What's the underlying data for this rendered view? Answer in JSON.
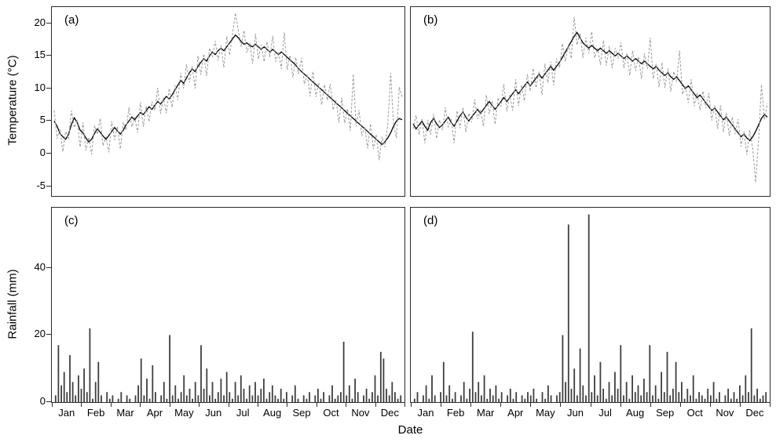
{
  "figure": {
    "xlabel": "Date",
    "ylabel_top": "Temperature (°C)",
    "ylabel_bottom": "Rainfall (mm)",
    "months": [
      "Jan",
      "Feb",
      "Mar",
      "Apr",
      "May",
      "Jun",
      "Jul",
      "Aug",
      "Sep",
      "Oct",
      "Nov",
      "Dec"
    ],
    "temp_ticks": [
      20,
      15,
      10,
      5,
      0,
      -5
    ],
    "rain_ticks": [
      0,
      20,
      40
    ],
    "line_color_solid": "#000000",
    "line_color_dashed": "#9a9a9a",
    "bar_color": "#3f3f3f"
  },
  "chart_data": [
    {
      "type": "line",
      "panel_label": "(a)",
      "ylabel": "Temperature (°C)",
      "xlabel": "Date",
      "x_range": "Jan to Dec, points every 3 days",
      "ylim": [
        -6.5,
        22.5
      ],
      "series": [
        {
          "name": "solid-black-line",
          "color": "#000000",
          "line_style": "solid",
          "values": [
            5.0,
            4.2,
            3.1,
            2.6,
            2.2,
            3.0,
            4.5,
            5.5,
            4.8,
            3.6,
            3.2,
            2.4,
            1.8,
            2.2,
            3.1,
            3.8,
            3.3,
            2.7,
            2.2,
            2.8,
            3.4,
            4.0,
            3.5,
            3.0,
            3.6,
            4.4,
            5.0,
            5.6,
            5.2,
            5.8,
            6.3,
            6.0,
            6.6,
            7.2,
            6.8,
            7.4,
            8.0,
            7.6,
            8.2,
            8.8,
            8.4,
            9.0,
            9.8,
            10.5,
            11.2,
            10.8,
            11.6,
            12.4,
            13.0,
            12.6,
            13.4,
            14.0,
            14.6,
            14.2,
            15.0,
            15.6,
            15.2,
            15.8,
            16.2,
            15.8,
            16.4,
            17.0,
            17.6,
            18.2,
            17.8,
            17.2,
            16.8,
            17.0,
            16.6,
            16.4,
            16.8,
            16.4,
            16.0,
            16.4,
            16.0,
            15.6,
            16.0,
            15.6,
            15.2,
            15.6,
            15.2,
            14.8,
            14.4,
            14.0,
            13.6,
            13.0,
            12.6,
            12.2,
            11.8,
            11.4,
            11.0,
            10.6,
            10.2,
            9.8,
            9.4,
            9.0,
            8.6,
            8.2,
            7.8,
            7.4,
            7.0,
            6.6,
            6.2,
            5.8,
            5.4,
            5.0,
            4.6,
            4.2,
            3.8,
            3.4,
            3.0,
            2.6,
            2.2,
            1.8,
            1.4,
            1.8,
            2.4,
            3.2,
            4.2,
            5.0,
            5.4,
            5.2
          ]
        },
        {
          "name": "dashed-grey-line",
          "color": "#9a9a9a",
          "line_style": "dashed",
          "values": [
            6.6,
            2.3,
            3.8,
            0.3,
            3.4,
            2.2,
            6.6,
            4.0,
            5.2,
            1.0,
            4.8,
            0.5,
            2.5,
            -0.1,
            4.3,
            3.0,
            5.4,
            1.2,
            2.6,
            0.2,
            5.0,
            2.1,
            4.2,
            0.7,
            4.8,
            3.6,
            7.1,
            4.1,
            5.6,
            3.2,
            7.9,
            4.1,
            7.3,
            4.9,
            8.0,
            6.6,
            10.1,
            6.1,
            8.6,
            6.2,
            10.0,
            7.1,
            10.5,
            8.2,
            12.4,
            10.0,
            13.7,
            10.9,
            13.4,
            10.0,
            15.0,
            12.1,
            15.3,
            11.9,
            16.2,
            14.8,
            17.3,
            14.3,
            16.6,
            13.2,
            18.0,
            15.1,
            18.3,
            21.6,
            19.0,
            16.4,
            18.9,
            15.5,
            17.0,
            13.8,
            18.4,
            14.5,
            16.7,
            14.1,
            17.2,
            14.8,
            18.1,
            14.1,
            15.6,
            13.0,
            18.6,
            12.9,
            15.1,
            11.7,
            14.8,
            12.2,
            14.7,
            10.7,
            12.2,
            8.8,
            12.6,
            8.7,
            10.9,
            7.5,
            10.6,
            8.2,
            10.7,
            6.7,
            8.2,
            4.8,
            8.6,
            4.7,
            6.9,
            3.5,
            12.2,
            4.2,
            6.7,
            2.7,
            4.2,
            0.8,
            4.6,
            0.7,
            2.9,
            -1.0,
            2.6,
            1.0,
            4.5,
            12.4,
            4.6,
            2.4,
            10.2,
            8.6
          ]
        }
      ]
    },
    {
      "type": "line",
      "panel_label": "(b)",
      "ylabel": "Temperature (°C)",
      "xlabel": "Date",
      "x_range": "Jan to Dec, points every 3 days",
      "ylim": [
        -6.5,
        22.5
      ],
      "series": [
        {
          "name": "solid-black-line",
          "color": "#000000",
          "line_style": "solid",
          "values": [
            4.6,
            3.8,
            4.4,
            5.0,
            4.2,
            3.6,
            4.8,
            5.4,
            4.6,
            4.0,
            4.4,
            5.0,
            5.6,
            4.8,
            4.2,
            5.0,
            5.8,
            6.4,
            5.6,
            5.0,
            5.6,
            6.2,
            6.8,
            6.2,
            6.8,
            7.4,
            8.0,
            7.4,
            6.8,
            7.4,
            8.0,
            8.6,
            8.0,
            8.6,
            9.2,
            9.8,
            9.2,
            9.8,
            10.4,
            11.0,
            10.4,
            11.0,
            11.6,
            12.2,
            11.6,
            12.2,
            12.8,
            13.4,
            12.8,
            13.4,
            14.0,
            14.8,
            15.6,
            16.4,
            17.2,
            18.0,
            18.6,
            17.8,
            17.0,
            16.6,
            16.2,
            16.6,
            16.2,
            15.8,
            16.2,
            15.8,
            15.4,
            15.8,
            15.4,
            15.0,
            15.4,
            15.0,
            14.6,
            15.0,
            14.6,
            14.2,
            14.6,
            14.2,
            13.8,
            14.2,
            13.8,
            13.4,
            13.0,
            13.4,
            12.8,
            12.4,
            12.0,
            12.4,
            11.8,
            11.4,
            11.8,
            11.2,
            10.6,
            10.0,
            10.4,
            9.8,
            9.2,
            8.6,
            9.0,
            8.4,
            7.8,
            7.2,
            6.6,
            7.0,
            6.4,
            5.8,
            5.2,
            5.6,
            5.0,
            4.4,
            3.8,
            3.2,
            2.6,
            3.0,
            2.4,
            2.0,
            2.6,
            3.4,
            4.4,
            5.4,
            6.0,
            5.6
          ]
        },
        {
          "name": "dashed-grey-line",
          "color": "#9a9a9a",
          "line_style": "dashed",
          "values": [
            3.8,
            5.9,
            2.9,
            5.4,
            1.6,
            5.2,
            2.9,
            6.1,
            2.3,
            5.2,
            3.6,
            7.1,
            4.1,
            5.2,
            1.6,
            6.6,
            3.9,
            7.1,
            3.3,
            6.2,
            4.8,
            8.3,
            5.3,
            6.6,
            4.2,
            9.0,
            6.1,
            8.1,
            4.5,
            8.6,
            7.2,
            10.7,
            6.5,
            9.0,
            6.6,
            11.4,
            7.3,
            10.5,
            8.1,
            12.2,
            9.6,
            13.1,
            10.1,
            12.6,
            9.0,
            13.8,
            10.9,
            14.1,
            10.5,
            14.6,
            13.2,
            16.9,
            14.1,
            16.8,
            14.6,
            21.0,
            16.7,
            18.5,
            14.7,
            17.8,
            15.4,
            18.7,
            14.7,
            16.2,
            13.6,
            17.4,
            13.5,
            16.5,
            13.1,
            16.2,
            14.6,
            17.1,
            13.1,
            15.4,
            12.0,
            15.8,
            12.7,
            14.9,
            11.5,
            15.4,
            13.0,
            17.8,
            11.5,
            13.8,
            10.2,
            14.0,
            10.1,
            13.1,
            9.5,
            12.6,
            11.0,
            15.8,
            9.1,
            10.4,
            7.8,
            11.4,
            7.3,
            9.3,
            6.7,
            9.6,
            7.0,
            9.3,
            5.1,
            7.4,
            3.8,
            7.4,
            3.3,
            6.3,
            2.7,
            5.6,
            3.0,
            5.3,
            1.1,
            3.4,
            -0.2,
            3.6,
            0.7,
            -4.4,
            2.1,
            10.6,
            5.2,
            7.7
          ]
        }
      ]
    },
    {
      "type": "bar",
      "panel_label": "(c)",
      "ylabel": "Rainfall (mm)",
      "xlabel": "Date",
      "x_range": "Jan to Dec, points every 3 days",
      "ylim": [
        0,
        58
      ],
      "bar_color": "#3f3f3f",
      "values": [
        2,
        17,
        5,
        9,
        3,
        14,
        6,
        2,
        8,
        4,
        10,
        3,
        22,
        1,
        6,
        12,
        2,
        0,
        3,
        1,
        2,
        0,
        1,
        3,
        0,
        2,
        1,
        0,
        2,
        5,
        13,
        2,
        7,
        1,
        11,
        3,
        0,
        2,
        6,
        1,
        20,
        2,
        5,
        1,
        3,
        8,
        2,
        4,
        1,
        6,
        2,
        17,
        4,
        10,
        2,
        6,
        1,
        3,
        7,
        2,
        9,
        3,
        1,
        6,
        2,
        8,
        4,
        1,
        5,
        2,
        6,
        2,
        4,
        7,
        1,
        3,
        5,
        2,
        1,
        4,
        1,
        3,
        0,
        2,
        5,
        1,
        0,
        2,
        1,
        3,
        0,
        2,
        4,
        1,
        3,
        0,
        2,
        5,
        1,
        2,
        3,
        18,
        2,
        5,
        1,
        7,
        3,
        0,
        2,
        4,
        1,
        3,
        8,
        2,
        15,
        13,
        4,
        2,
        6,
        3,
        1,
        2
      ]
    },
    {
      "type": "bar",
      "panel_label": "(d)",
      "ylabel": "Rainfall (mm)",
      "xlabel": "Date",
      "x_range": "Jan to Dec, points every 3 days",
      "ylim": [
        0,
        58
      ],
      "bar_color": "#3f3f3f",
      "values": [
        1,
        3,
        0,
        2,
        5,
        1,
        8,
        2,
        0,
        3,
        12,
        2,
        5,
        1,
        3,
        0,
        2,
        6,
        1,
        4,
        21,
        3,
        6,
        2,
        8,
        1,
        4,
        2,
        5,
        1,
        3,
        0,
        2,
        4,
        1,
        3,
        0,
        2,
        1,
        3,
        2,
        4,
        1,
        0,
        3,
        1,
        5,
        2,
        0,
        2,
        3,
        20,
        6,
        53,
        4,
        10,
        2,
        16,
        5,
        2,
        56,
        3,
        8,
        2,
        12,
        4,
        1,
        6,
        2,
        9,
        4,
        17,
        2,
        6,
        1,
        8,
        3,
        5,
        2,
        7,
        3,
        17,
        2,
        5,
        1,
        9,
        3,
        15,
        2,
        4,
        12,
        3,
        6,
        1,
        4,
        2,
        8,
        1,
        3,
        2,
        1,
        4,
        2,
        6,
        1,
        3,
        0,
        2,
        4,
        1,
        3,
        1,
        5,
        2,
        8,
        3,
        22,
        2,
        4,
        1,
        2,
        3
      ]
    }
  ]
}
